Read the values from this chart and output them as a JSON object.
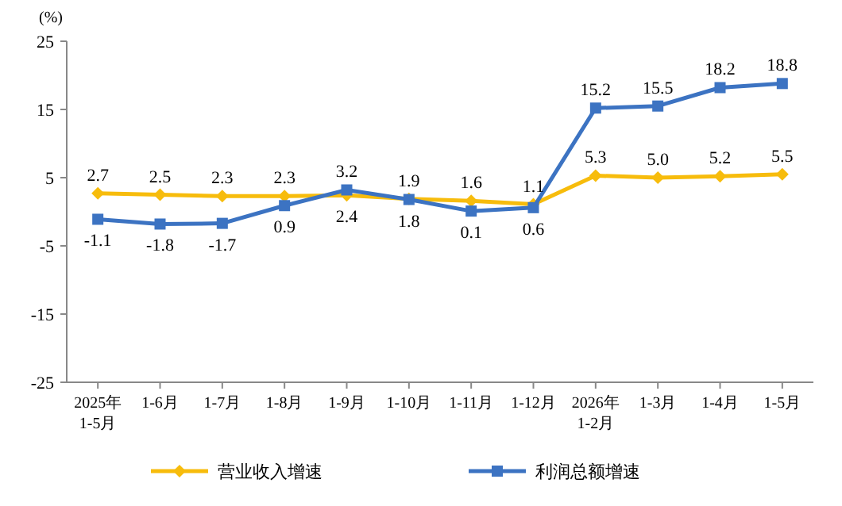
{
  "chart_data": {
    "type": "line",
    "ylabel": "(%)",
    "categories": [
      "2025年\n1-5月",
      "1-6月",
      "1-7月",
      "1-8月",
      "1-9月",
      "1-10月",
      "1-11月",
      "1-12月",
      "2026年\n1-2月",
      "1-3月",
      "1-4月",
      "1-5月"
    ],
    "series": [
      {
        "name": "营业收入增速",
        "color": "#f7bc0c",
        "marker": "diamond",
        "values": [
          2.7,
          2.5,
          2.3,
          2.3,
          2.4,
          1.9,
          1.6,
          1.1,
          5.3,
          5.0,
          5.2,
          5.5
        ],
        "value_labels": [
          "2.7",
          "2.5",
          "2.3",
          "2.3",
          "2.4",
          "1.9",
          "1.6",
          "1.1",
          "5.3",
          "5.0",
          "5.2",
          "5.5"
        ]
      },
      {
        "name": "利润总额增速",
        "color": "#3c73c2",
        "marker": "square",
        "values": [
          -1.1,
          -1.8,
          -1.7,
          0.9,
          3.2,
          1.8,
          0.1,
          0.6,
          15.2,
          15.5,
          18.2,
          18.8
        ],
        "value_labels": [
          "-1.1",
          "-1.8",
          "-1.7",
          "0.9",
          "3.2",
          "1.8",
          "0.1",
          "0.6",
          "15.2",
          "15.5",
          "18.2",
          "18.8"
        ]
      }
    ],
    "ylim": [
      -25,
      25
    ],
    "yticks": [
      -25,
      -15,
      -5,
      5,
      15,
      25
    ],
    "grid": false,
    "legend": "bottom",
    "line_style": "solid"
  }
}
